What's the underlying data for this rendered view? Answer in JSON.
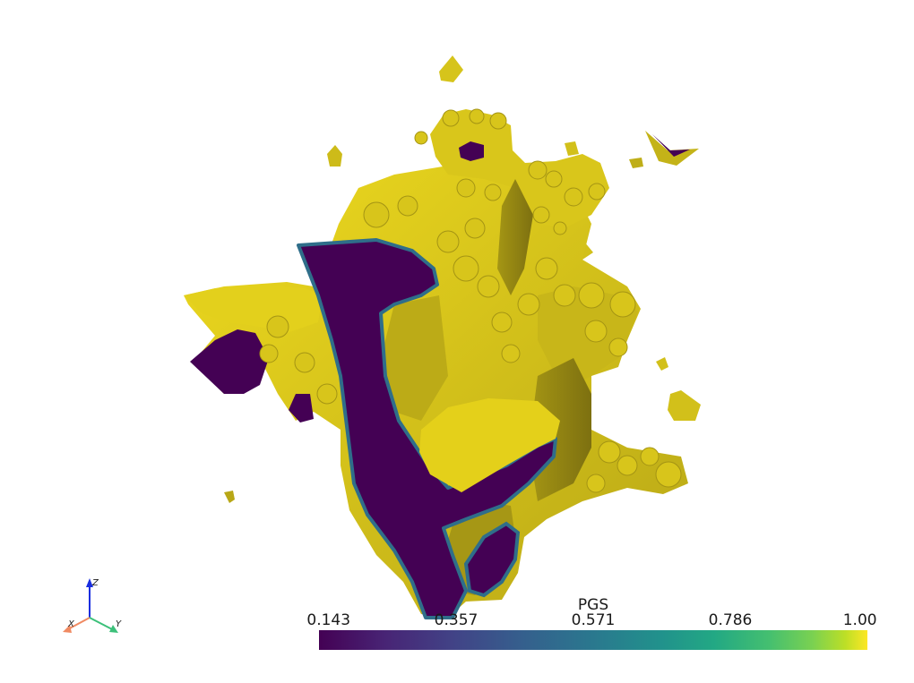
{
  "scalar_bar": {
    "title": "PGS",
    "ticks": [
      "0.143",
      "0.357",
      "0.571",
      "0.786",
      "1.00"
    ],
    "range": [
      0.143,
      1.0
    ],
    "colormap": "viridis"
  },
  "axes": {
    "x": "X",
    "y": "Y",
    "z": "Z"
  },
  "colors": {
    "surface_light": "#e4d01a",
    "surface_mid": "#bfae18",
    "surface_dark": "#8c7e12",
    "cut_face": "#440154",
    "cut_edge": "#2f6e8a",
    "x_axis": "#f08a62",
    "y_axis": "#3cc07a",
    "z_axis": "#1a2ee0"
  }
}
